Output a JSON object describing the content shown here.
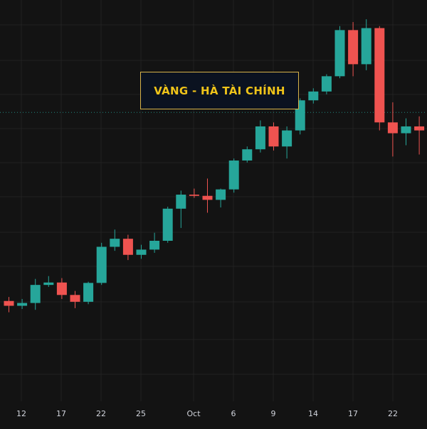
{
  "title": "VÀNG - HÀ TÀI CHÍNH",
  "colors": {
    "background": "#131313",
    "grid": "#222222",
    "up": "#26a69a",
    "down": "#ef5350",
    "wick_up": "#26a69a",
    "wick_down": "#ef5350",
    "price_line": "#26a69a",
    "title_border": "#d6b24a",
    "title_text": "#f0c419",
    "axis_text": "#d1d4dc"
  },
  "chart_data": {
    "type": "candlestick",
    "title": "VÀNG - HÀ TÀI CHÍNH",
    "x_axis_ticks": [
      "12",
      "17",
      "22",
      "25",
      "Oct",
      "6",
      "9",
      "14",
      "17",
      "22"
    ],
    "y_axis": {
      "range": [
        0,
        100
      ],
      "units": "relative (no price scale visible)"
    },
    "current_price_line": 72,
    "grid": true,
    "candles": [
      {
        "o": 25.0,
        "h": 26.0,
        "l": 22.2,
        "c": 23.8
      },
      {
        "o": 23.8,
        "h": 25.5,
        "l": 23.0,
        "c": 24.5
      },
      {
        "o": 24.5,
        "h": 30.5,
        "l": 22.8,
        "c": 29.0
      },
      {
        "o": 29.0,
        "h": 31.2,
        "l": 28.5,
        "c": 29.6
      },
      {
        "o": 29.6,
        "h": 30.7,
        "l": 25.5,
        "c": 26.5
      },
      {
        "o": 26.5,
        "h": 27.5,
        "l": 23.2,
        "c": 24.8
      },
      {
        "o": 24.8,
        "h": 29.8,
        "l": 24.2,
        "c": 29.5
      },
      {
        "o": 29.5,
        "h": 39.5,
        "l": 29.0,
        "c": 38.5
      },
      {
        "o": 38.5,
        "h": 42.8,
        "l": 37.5,
        "c": 40.5
      },
      {
        "o": 40.5,
        "h": 41.5,
        "l": 35.2,
        "c": 36.5
      },
      {
        "o": 36.5,
        "h": 39.0,
        "l": 35.5,
        "c": 37.8
      },
      {
        "o": 37.8,
        "h": 42.0,
        "l": 37.0,
        "c": 40.0
      },
      {
        "o": 40.0,
        "h": 48.5,
        "l": 39.5,
        "c": 48.0
      },
      {
        "o": 48.0,
        "h": 52.5,
        "l": 43.2,
        "c": 51.5
      },
      {
        "o": 51.5,
        "h": 53.0,
        "l": 50.7,
        "c": 51.2
      },
      {
        "o": 51.2,
        "h": 55.5,
        "l": 47.0,
        "c": 50.2
      },
      {
        "o": 50.2,
        "h": 53.0,
        "l": 48.3,
        "c": 52.8
      },
      {
        "o": 52.8,
        "h": 60.5,
        "l": 52.0,
        "c": 60.0
      },
      {
        "o": 60.0,
        "h": 63.5,
        "l": 59.5,
        "c": 62.8
      },
      {
        "o": 62.8,
        "h": 70.0,
        "l": 62.0,
        "c": 68.5
      },
      {
        "o": 68.5,
        "h": 69.5,
        "l": 62.5,
        "c": 63.5
      },
      {
        "o": 63.5,
        "h": 68.5,
        "l": 60.5,
        "c": 67.5
      },
      {
        "o": 67.5,
        "h": 75.5,
        "l": 66.5,
        "c": 75.0
      },
      {
        "o": 75.0,
        "h": 78.0,
        "l": 74.2,
        "c": 77.2
      },
      {
        "o": 77.2,
        "h": 81.5,
        "l": 76.5,
        "c": 81.0
      },
      {
        "o": 81.0,
        "h": 93.5,
        "l": 80.5,
        "c": 92.5
      },
      {
        "o": 92.5,
        "h": 94.5,
        "l": 81.0,
        "c": 84.0
      },
      {
        "o": 84.0,
        "h": 95.2,
        "l": 82.5,
        "c": 93.0
      },
      {
        "o": 93.0,
        "h": 93.5,
        "l": 67.5,
        "c": 69.5
      },
      {
        "o": 69.5,
        "h": 74.5,
        "l": 61.0,
        "c": 66.8
      },
      {
        "o": 66.8,
        "h": 70.5,
        "l": 63.8,
        "c": 68.5
      },
      {
        "o": 68.5,
        "h": 71.0,
        "l": 61.5,
        "c": 67.5
      }
    ]
  }
}
